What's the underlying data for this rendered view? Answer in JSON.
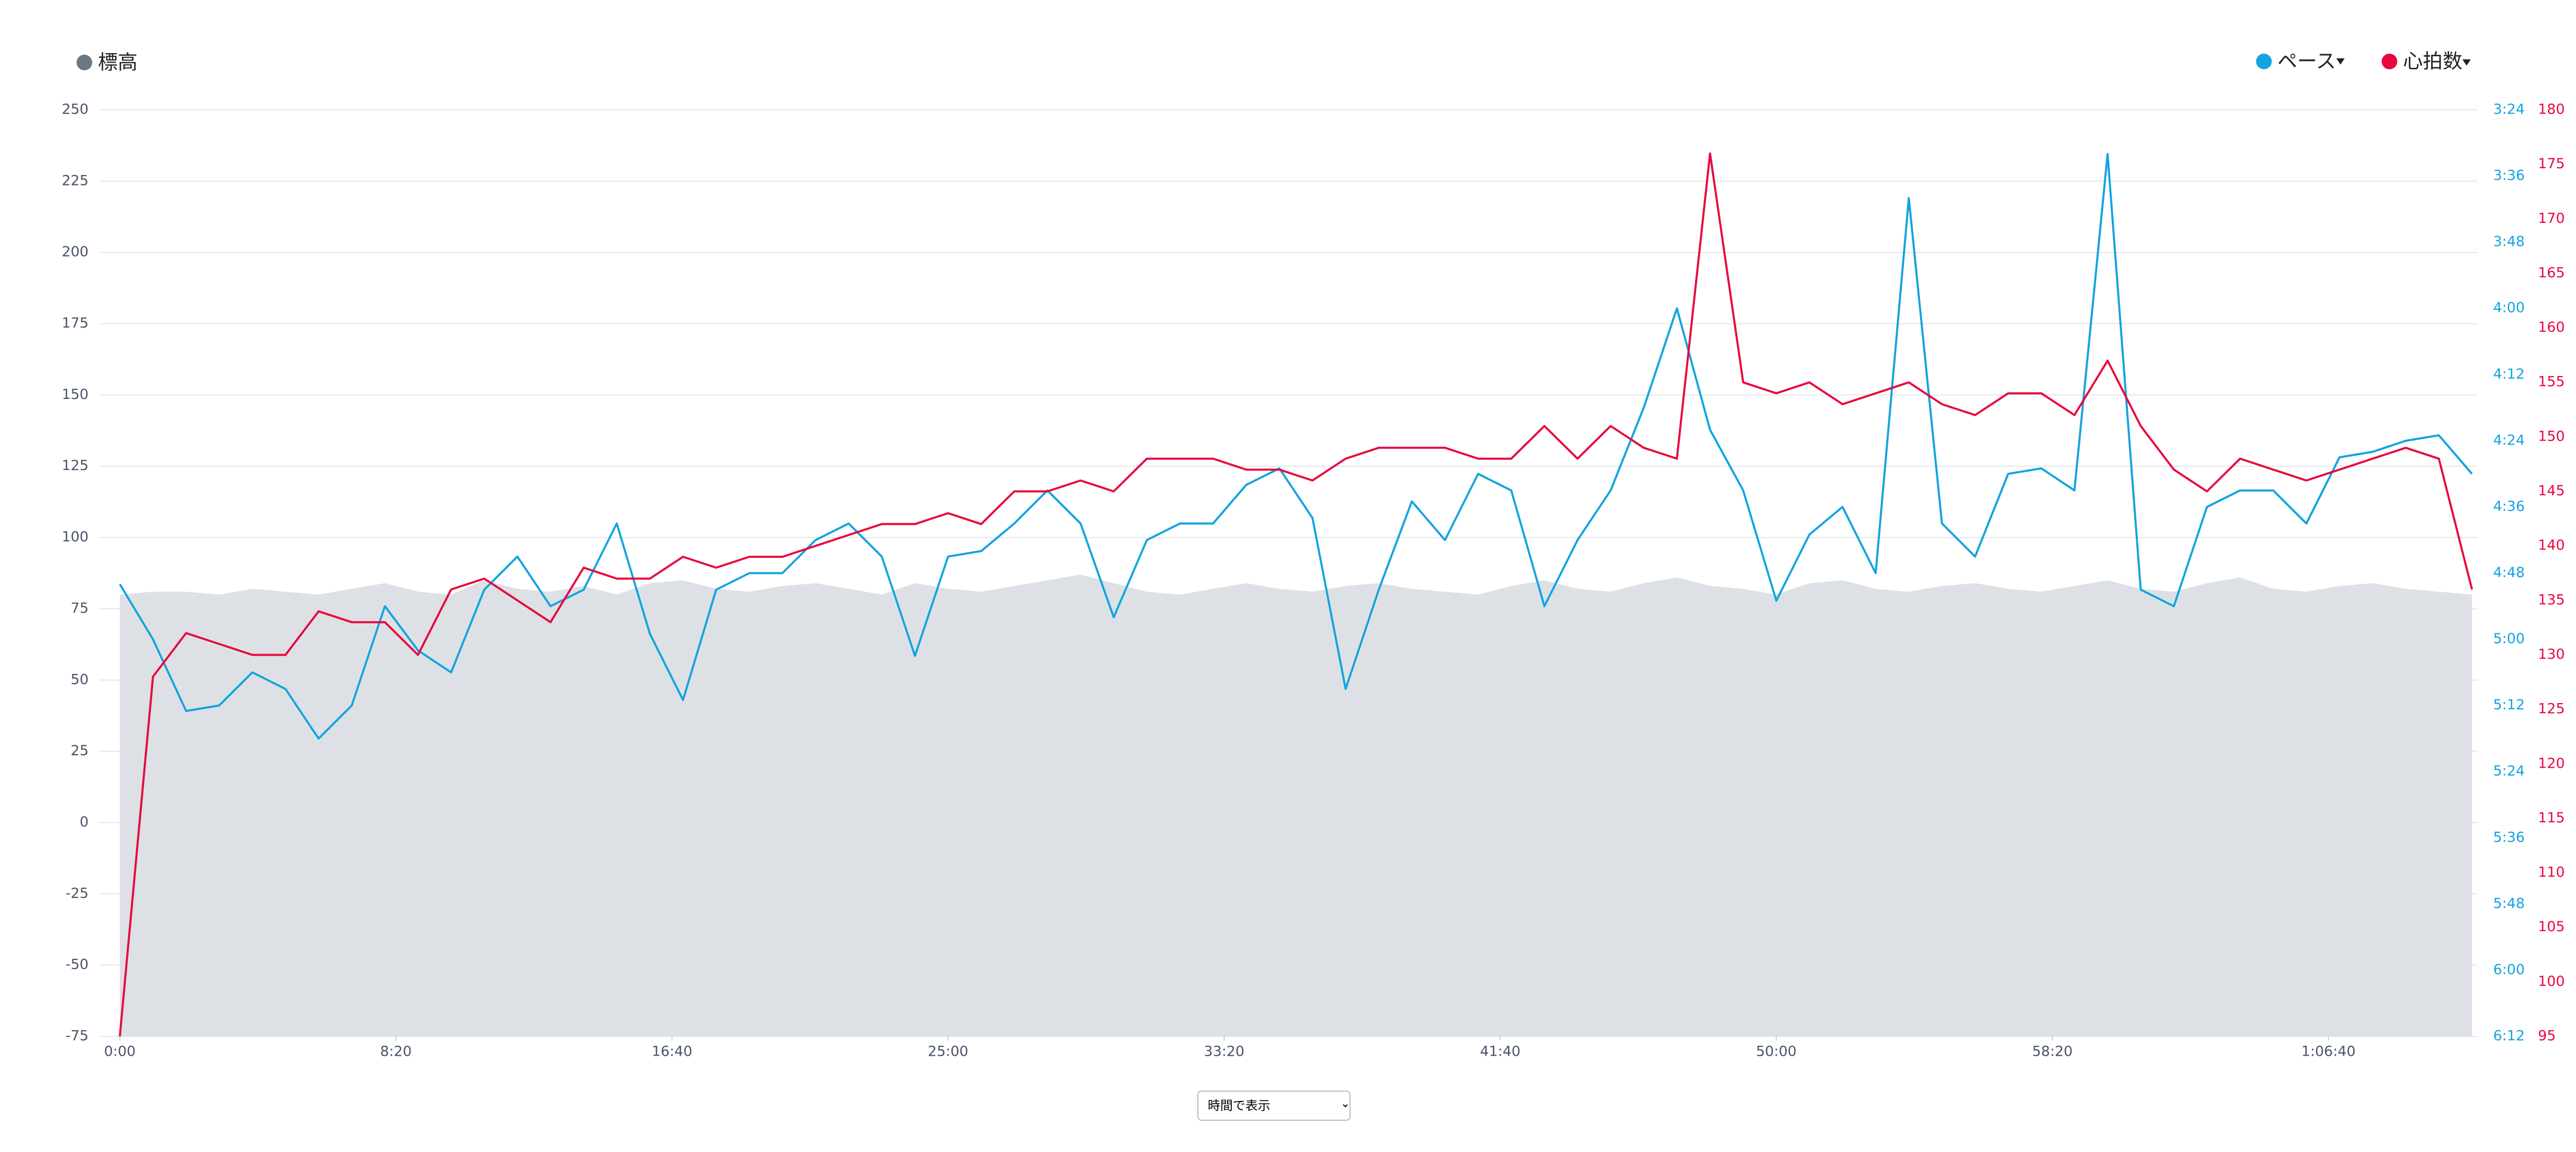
{
  "chart_data": {
    "type": "line",
    "x": [
      0,
      60,
      120,
      180,
      240,
      300,
      360,
      420,
      480,
      540,
      600,
      660,
      720,
      780,
      840,
      900,
      960,
      1020,
      1080,
      1140,
      1200,
      1260,
      1320,
      1380,
      1440,
      1500,
      1560,
      1620,
      1680,
      1740,
      1800,
      1860,
      1920,
      1980,
      2040,
      2100,
      2160,
      2220,
      2280,
      2340,
      2400,
      2460,
      2520,
      2580,
      2640,
      2700,
      2760,
      2820,
      2880,
      2940,
      3000,
      3060,
      3120,
      3180,
      3240,
      3300,
      3360,
      3420,
      3480,
      3540,
      3600,
      3660,
      3720,
      3780,
      3840,
      3900,
      3960,
      4020,
      4080,
      4140,
      4200,
      4260
    ],
    "xlim": [
      0,
      4270
    ],
    "xticks": [
      {
        "value": 0,
        "label": "0:00"
      },
      {
        "value": 500,
        "label": "8:20"
      },
      {
        "value": 1000,
        "label": "16:40"
      },
      {
        "value": 1500,
        "label": "25:00"
      },
      {
        "value": 2000,
        "label": "33:20"
      },
      {
        "value": 2500,
        "label": "41:40"
      },
      {
        "value": 3000,
        "label": "50:00"
      },
      {
        "value": 3500,
        "label": "58:20"
      },
      {
        "value": 4000,
        "label": "1:06:40"
      }
    ],
    "ylim": [
      -75,
      250
    ],
    "yticks": [
      -75,
      -50,
      -25,
      0,
      25,
      50,
      75,
      100,
      125,
      150,
      175,
      200,
      225,
      250
    ],
    "y2lim": [
      372,
      204
    ],
    "y2ticks": [
      {
        "value": 204,
        "label": "3:24"
      },
      {
        "value": 216,
        "label": "3:36"
      },
      {
        "value": 228,
        "label": "3:48"
      },
      {
        "value": 240,
        "label": "4:00"
      },
      {
        "value": 252,
        "label": "4:12"
      },
      {
        "value": 264,
        "label": "4:24"
      },
      {
        "value": 276,
        "label": "4:36"
      },
      {
        "value": 288,
        "label": "4:48"
      },
      {
        "value": 300,
        "label": "5:00"
      },
      {
        "value": 312,
        "label": "5:12"
      },
      {
        "value": 324,
        "label": "5:24"
      },
      {
        "value": 336,
        "label": "5:36"
      },
      {
        "value": 348,
        "label": "5:48"
      },
      {
        "value": 360,
        "label": "6:00"
      },
      {
        "value": 372,
        "label": "6:12"
      }
    ],
    "y3lim": [
      95,
      180
    ],
    "y3ticks": [
      95,
      100,
      105,
      110,
      115,
      120,
      125,
      130,
      135,
      140,
      145,
      150,
      155,
      160,
      165,
      170,
      175,
      180
    ],
    "grid": true,
    "series": [
      {
        "name": "標高",
        "type": "area",
        "color": "#6b7785",
        "fill": "#dde1e6",
        "values": [
          80,
          81,
          81,
          80,
          82,
          81,
          80,
          82,
          84,
          81,
          80,
          85,
          82,
          81,
          83,
          80,
          84,
          85,
          82,
          81,
          83,
          84,
          82,
          80,
          84,
          82,
          81,
          83,
          85,
          87,
          84,
          81,
          80,
          82,
          84,
          82,
          81,
          83,
          84,
          82,
          81,
          80,
          83,
          85,
          82,
          81,
          84,
          86,
          83,
          82,
          80,
          84,
          85,
          82,
          81,
          83,
          84,
          82,
          81,
          83,
          85,
          82,
          81,
          84,
          86,
          82,
          81,
          83,
          84,
          82,
          81,
          80
        ]
      },
      {
        "name": "ペース",
        "axis": "y2",
        "color": "#12a4df",
        "values": [
          290,
          300,
          313,
          312,
          306,
          309,
          318,
          312,
          294,
          302,
          306,
          291,
          285,
          294,
          291,
          279,
          299,
          311,
          291,
          288,
          288,
          282,
          279,
          285,
          303,
          285,
          284,
          279,
          273,
          279,
          296,
          282,
          279,
          279,
          272,
          269,
          278,
          309,
          291,
          275,
          282,
          270,
          273,
          294,
          282,
          273,
          258,
          240,
          262,
          273,
          293,
          281,
          276,
          288,
          220,
          279,
          285,
          270,
          269,
          273,
          212,
          291,
          294,
          276,
          273,
          273,
          279,
          267,
          266,
          264,
          263,
          270
        ]
      },
      {
        "name": "心拍数",
        "axis": "y3",
        "color": "#e8083e",
        "values": [
          95,
          128,
          132,
          131,
          130,
          130,
          134,
          133,
          133,
          130,
          136,
          137,
          135,
          133,
          138,
          137,
          137,
          139,
          138,
          139,
          139,
          140,
          141,
          142,
          142,
          143,
          142,
          145,
          145,
          146,
          145,
          148,
          148,
          148,
          147,
          147,
          146,
          148,
          149,
          149,
          149,
          148,
          148,
          151,
          148,
          151,
          149,
          148,
          176,
          155,
          154,
          155,
          153,
          154,
          155,
          153,
          152,
          154,
          154,
          152,
          157,
          151,
          147,
          145,
          148,
          147,
          146,
          147,
          148,
          149,
          148,
          136
        ]
      }
    ]
  },
  "controls": {
    "display_mode": "時間で表示"
  }
}
